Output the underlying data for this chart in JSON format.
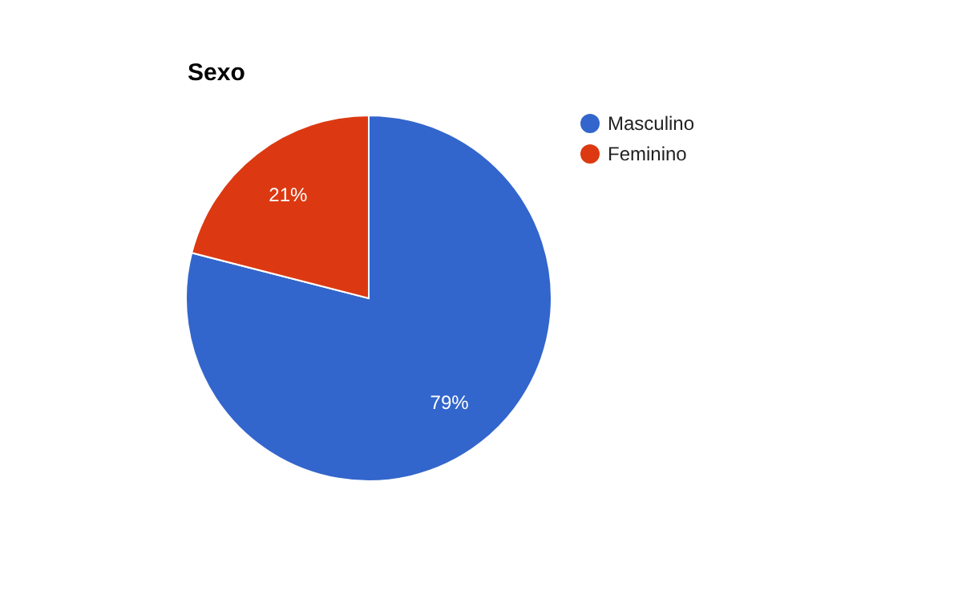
{
  "chart_data": {
    "type": "pie",
    "title": "Sexo",
    "categories": [
      "Masculino",
      "Feminino"
    ],
    "values": [
      79,
      21
    ],
    "colors": [
      "#3366cc",
      "#dc3912"
    ],
    "value_labels": [
      "79%",
      "21%"
    ],
    "legend": "top right"
  }
}
